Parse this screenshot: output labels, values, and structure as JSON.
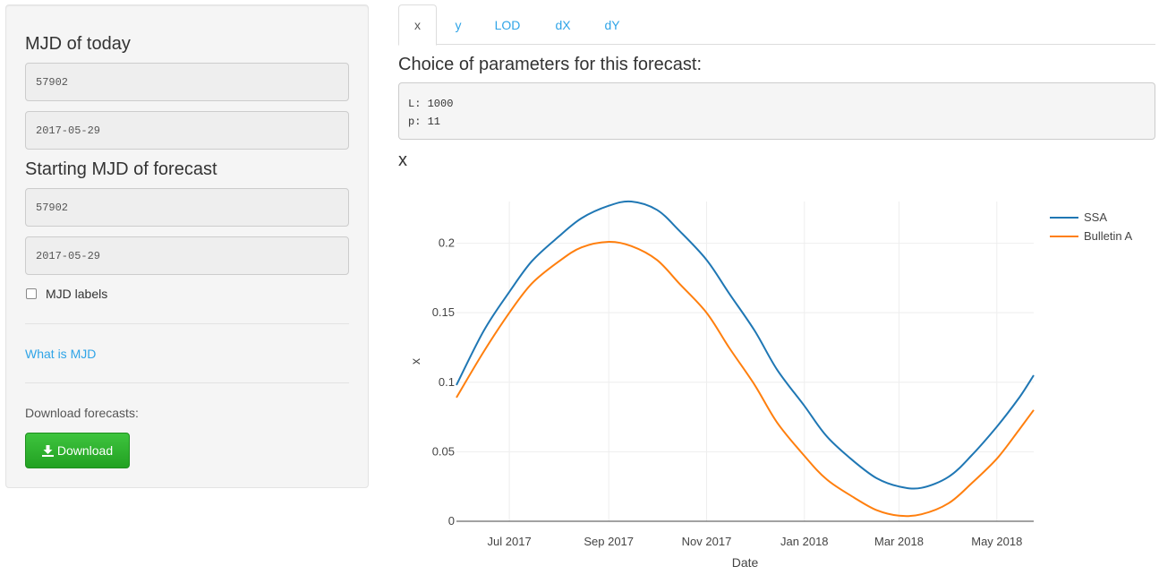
{
  "sidebar": {
    "mjd_today_heading": "MJD of today",
    "mjd_today_value": "57902",
    "date_today_value": "2017-05-29",
    "start_heading": "Starting MJD of forecast",
    "start_mjd_value": "57902",
    "start_date_value": "2017-05-29",
    "mjd_labels_checkbox": "MJD labels",
    "mjd_labels_checked": false,
    "what_is_mjd_link": "What is MJD",
    "download_label": "Download forecasts:",
    "download_button": "Download",
    "download_icon": "download-icon"
  },
  "tabs": [
    {
      "label": "x",
      "active": true
    },
    {
      "label": "y",
      "active": false
    },
    {
      "label": "LOD",
      "active": false
    },
    {
      "label": "dX",
      "active": false
    },
    {
      "label": "dY",
      "active": false
    }
  ],
  "main": {
    "params_title": "Choice of parameters for this forecast:",
    "params_line1": "L: 1000",
    "params_line2": "p: 11",
    "plot_title": "x"
  },
  "chart_data": {
    "type": "line",
    "title": "",
    "xlabel": "Date",
    "ylabel": "x",
    "xlim": [
      "2017-05-29",
      "2018-05-24"
    ],
    "ylim": [
      0,
      0.23
    ],
    "x_tick_dates": [
      "2017-07-01",
      "2017-09-01",
      "2017-11-01",
      "2018-01-01",
      "2018-03-01",
      "2018-05-01"
    ],
    "x_tick_labels": [
      "Jul 2017",
      "Sep 2017",
      "Nov 2017",
      "Jan 2018",
      "Mar 2018",
      "May 2018"
    ],
    "y_ticks": [
      0,
      0.05,
      0.1,
      0.15,
      0.2
    ],
    "y_tick_labels": [
      "0",
      "0.05",
      "0.1",
      "0.15",
      "0.2"
    ],
    "grid": true,
    "legend_position": "top-right",
    "x": [
      "2017-05-29",
      "2017-06-15",
      "2017-07-01",
      "2017-07-15",
      "2017-08-01",
      "2017-08-15",
      "2017-09-01",
      "2017-09-15",
      "2017-10-01",
      "2017-10-15",
      "2017-11-01",
      "2017-11-15",
      "2017-12-01",
      "2017-12-15",
      "2018-01-01",
      "2018-01-15",
      "2018-02-01",
      "2018-02-15",
      "2018-03-01",
      "2018-03-15",
      "2018-04-01",
      "2018-04-15",
      "2018-05-01",
      "2018-05-15",
      "2018-05-24"
    ],
    "series": [
      {
        "name": "SSA",
        "color": "#1f77b4",
        "values": [
          0.098,
          0.137,
          0.165,
          0.187,
          0.205,
          0.218,
          0.227,
          0.23,
          0.224,
          0.209,
          0.188,
          0.164,
          0.137,
          0.109,
          0.083,
          0.061,
          0.043,
          0.031,
          0.025,
          0.024,
          0.032,
          0.047,
          0.068,
          0.089,
          0.105
        ]
      },
      {
        "name": "Bulletin A",
        "color": "#ff7f0e",
        "values": [
          0.089,
          0.122,
          0.15,
          0.171,
          0.187,
          0.197,
          0.201,
          0.198,
          0.188,
          0.171,
          0.15,
          0.125,
          0.098,
          0.071,
          0.047,
          0.03,
          0.017,
          0.008,
          0.004,
          0.005,
          0.013,
          0.027,
          0.045,
          0.066,
          0.08
        ]
      }
    ]
  }
}
